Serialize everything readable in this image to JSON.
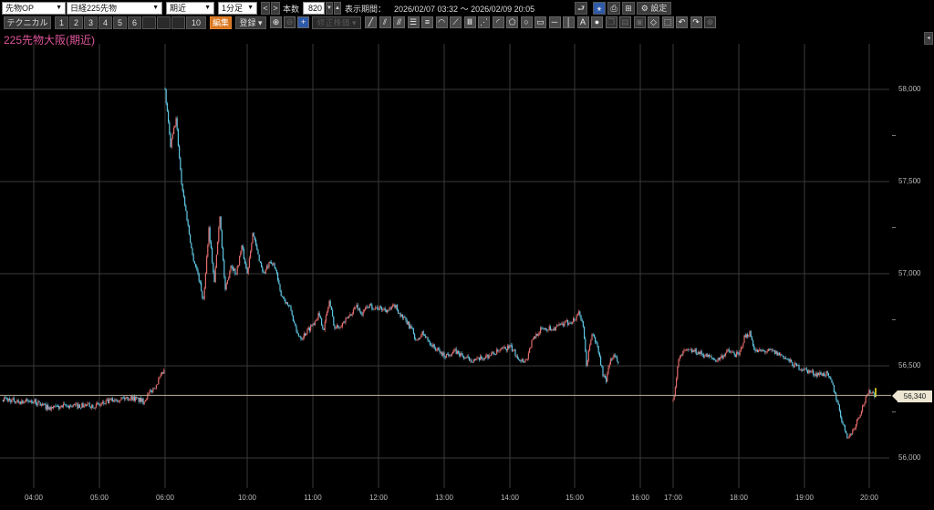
{
  "toolbar": {
    "category_select": "先物OP",
    "instrument_select": "日経225先物",
    "contract_select": "期近",
    "interval_select": "1分足",
    "prev_label": "<",
    "next_label": ">",
    "count_label": "本数",
    "count_value": "820",
    "period_label": "表示期間：",
    "period_value": "2026/02/07 03:32 〜 2026/02/09 20:05",
    "settings_label": "設定",
    "technical_label": "テクニカル",
    "slots": [
      "1",
      "2",
      "3",
      "4",
      "5",
      "6",
      "",
      "",
      "",
      "10"
    ],
    "edit_label": "編集",
    "register_label": "登録",
    "adjusted_price_label": "修正株価",
    "drawing_tools": [
      "trendline",
      "channel",
      "parallel-lines",
      "fib-retracement",
      "horizontal-lines",
      "fib-arc",
      "fib-fan",
      "vertical-lines",
      "gann-fan",
      "arc",
      "polygon",
      "circle",
      "rectangle",
      "horizontal-line",
      "vertical-line",
      "text",
      "stamp",
      "copy",
      "paste",
      "cut",
      "eraser",
      "select",
      "undo",
      "redo",
      "delete-all"
    ]
  },
  "chart_title": "225先物大阪(期近)",
  "colors": {
    "up": "#e06a6a",
    "down": "#5fc6e2",
    "last_line": "#b8b09a",
    "grid": "#3a3a3a",
    "title": "#e0569a"
  },
  "chart_data": {
    "type": "candlestick",
    "interval": "1分足",
    "ylim": [
      55950,
      58050
    ],
    "y_ticks": [
      "58,000",
      "57,500",
      "57,000",
      "56,500",
      "56,000"
    ],
    "x_ticks": [
      "04:00",
      "05:00",
      "06:00",
      "10:00",
      "11:00",
      "12:00",
      "13:00",
      "14:00",
      "15:00",
      "16:00",
      "17:00",
      "18:00",
      "19:00",
      "20:00"
    ],
    "last_price": "56,340",
    "approx_path": [
      [
        "03:32",
        56322
      ],
      [
        "03:45",
        56307
      ],
      [
        "04:00",
        56307
      ],
      [
        "04:15",
        56268
      ],
      [
        "04:30",
        56282
      ],
      [
        "05:00",
        56287
      ],
      [
        "05:15",
        56322
      ],
      [
        "05:30",
        56327
      ],
      [
        "05:40",
        56307
      ],
      [
        "05:45",
        56347
      ],
      [
        "05:50",
        56381
      ],
      [
        "05:55",
        56431
      ],
      [
        "06:00",
        56480
      ],
      [
        "08:45",
        57990
      ],
      [
        "08:50",
        57693
      ],
      [
        "08:55",
        57842
      ],
      [
        "09:00",
        57495
      ],
      [
        "09:05",
        57297
      ],
      [
        "09:10",
        57099
      ],
      [
        "09:15",
        57000
      ],
      [
        "09:20",
        56852
      ],
      [
        "09:25",
        57248
      ],
      [
        "09:30",
        56951
      ],
      [
        "09:35",
        57322
      ],
      [
        "09:40",
        56901
      ],
      [
        "09:45",
        57050
      ],
      [
        "09:50",
        57000
      ],
      [
        "09:55",
        57149
      ],
      [
        "10:00",
        57000
      ],
      [
        "10:05",
        57223
      ],
      [
        "10:10",
        57099
      ],
      [
        "10:15",
        57000
      ],
      [
        "10:20",
        57050
      ],
      [
        "10:25",
        57050
      ],
      [
        "10:30",
        56901
      ],
      [
        "10:40",
        56802
      ],
      [
        "10:45",
        56678
      ],
      [
        "10:50",
        56654
      ],
      [
        "11:00",
        56728
      ],
      [
        "11:05",
        56777
      ],
      [
        "11:10",
        56703
      ],
      [
        "11:15",
        56852
      ],
      [
        "11:20",
        56703
      ],
      [
        "11:30",
        56743
      ],
      [
        "11:40",
        56827
      ],
      [
        "11:45",
        56777
      ],
      [
        "11:50",
        56827
      ],
      [
        "12:00",
        56812
      ],
      [
        "12:10",
        56802
      ],
      [
        "12:15",
        56827
      ],
      [
        "12:20",
        56777
      ],
      [
        "12:30",
        56703
      ],
      [
        "12:35",
        56629
      ],
      [
        "12:40",
        56678
      ],
      [
        "12:50",
        56604
      ],
      [
        "13:00",
        56555
      ],
      [
        "13:10",
        56579
      ],
      [
        "13:20",
        56540
      ],
      [
        "13:30",
        56530
      ],
      [
        "13:40",
        56555
      ],
      [
        "13:50",
        56579
      ],
      [
        "14:00",
        56604
      ],
      [
        "14:10",
        56530
      ],
      [
        "14:15",
        56530
      ],
      [
        "14:20",
        56629
      ],
      [
        "14:25",
        56678
      ],
      [
        "14:30",
        56703
      ],
      [
        "14:40",
        56703
      ],
      [
        "14:50",
        56728
      ],
      [
        "15:00",
        56753
      ],
      [
        "15:03",
        56802
      ],
      [
        "15:07",
        56703
      ],
      [
        "15:10",
        56505
      ],
      [
        "15:15",
        56678
      ],
      [
        "15:20",
        56604
      ],
      [
        "15:25",
        56456
      ],
      [
        "15:28",
        56406
      ],
      [
        "15:30",
        56505
      ],
      [
        "15:35",
        56555
      ],
      [
        "15:40",
        56505
      ],
      [
        "17:00",
        56307
      ],
      [
        "17:05",
        56530
      ],
      [
        "17:10",
        56579
      ],
      [
        "17:20",
        56579
      ],
      [
        "17:30",
        56555
      ],
      [
        "17:40",
        56530
      ],
      [
        "17:50",
        56579
      ],
      [
        "18:00",
        56555
      ],
      [
        "18:05",
        56654
      ],
      [
        "18:10",
        56678
      ],
      [
        "18:15",
        56579
      ],
      [
        "18:30",
        56579
      ],
      [
        "18:40",
        56555
      ],
      [
        "18:50",
        56505
      ],
      [
        "19:00",
        56480
      ],
      [
        "19:10",
        56456
      ],
      [
        "19:20",
        56456
      ],
      [
        "19:25",
        56406
      ],
      [
        "19:30",
        56307
      ],
      [
        "19:35",
        56183
      ],
      [
        "19:40",
        56109
      ],
      [
        "19:45",
        56159
      ],
      [
        "19:50",
        56233
      ],
      [
        "19:55",
        56307
      ],
      [
        "20:00",
        56366
      ],
      [
        "20:05",
        56340
      ]
    ]
  }
}
